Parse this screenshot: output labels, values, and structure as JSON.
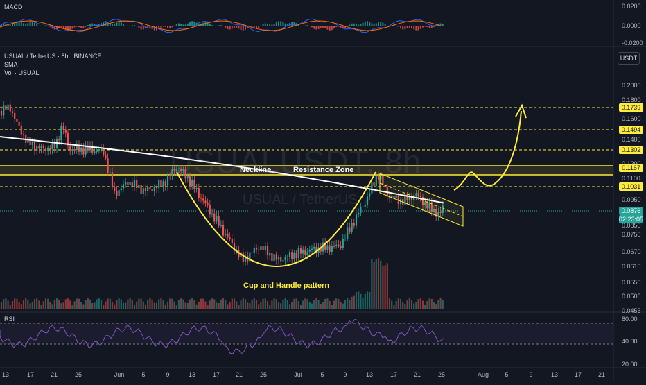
{
  "panes": {
    "macd": {
      "title": "MACD"
    },
    "rsi": {
      "title": "RSI"
    }
  },
  "legend": {
    "symbol_line": "USUAL / TetherUS · 8h · BINANCE",
    "sma": "SMA",
    "volume": "Vol · USUAL"
  },
  "currency_badge": "USDT",
  "watermark": {
    "symbol": "USUALUSDT, 8h",
    "description": "USUAL / TetherUS"
  },
  "annotations": {
    "neckline": "Neckline",
    "resistance_zone": "Resistance Zone",
    "pattern": "Cup and Handle pattern"
  },
  "price_axis": {
    "ticks": [
      "0.2000",
      "0.1800",
      "0.1600",
      "0.1400",
      "0.1200",
      "0.1100",
      "0.0950",
      "0.0850",
      "0.0750",
      "0.0670",
      "0.0610",
      "0.0550",
      "0.0500",
      "0.0455"
    ],
    "levels": [
      "0.1739",
      "0.1494",
      "0.1302",
      "0.1167",
      "0.1031"
    ],
    "current_price": "0.0876",
    "countdown": "02:23:05"
  },
  "macd_axis": [
    "0.0200",
    "0.0000",
    "-0.0200"
  ],
  "rsi_axis": [
    "80.00",
    "40.00",
    "20.00"
  ],
  "time_axis": [
    "13",
    "17",
    "21",
    "25",
    "Jun",
    "5",
    "9",
    "13",
    "17",
    "21",
    "25",
    "Jul",
    "5",
    "9",
    "13",
    "17",
    "21",
    "25",
    "Aug",
    "5",
    "9",
    "13",
    "17",
    "21"
  ],
  "colors": {
    "background": "#131722",
    "up": "#26a69a",
    "down": "#ef5350",
    "sma": "#ffffff",
    "pattern": "#ffeb3b",
    "level_tag": "#ffeb3b",
    "price_tag": "#26a69a",
    "rsi": "#7e57c2",
    "macd": "#2962ff",
    "signal": "#ff6d00"
  }
}
